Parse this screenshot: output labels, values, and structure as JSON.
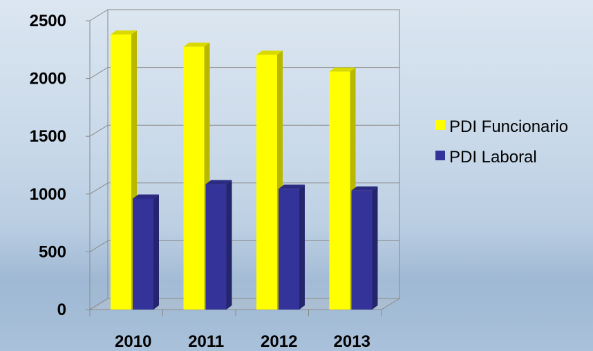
{
  "chart_data": {
    "type": "bar",
    "categories": [
      "2010",
      "2011",
      "2012",
      "2013"
    ],
    "series": [
      {
        "name": "PDI Funcionario",
        "color": "#ffff00",
        "values": [
          2380,
          2275,
          2205,
          2060
        ]
      },
      {
        "name": "PDI Laboral",
        "color": "#333399",
        "values": [
          960,
          1085,
          1045,
          1030
        ]
      }
    ],
    "ylim": [
      0,
      2500
    ],
    "yticks": [
      "0",
      "500",
      "1000",
      "1500",
      "2000",
      "2500"
    ],
    "grid": true,
    "three_d": true,
    "legend_position": "right"
  }
}
